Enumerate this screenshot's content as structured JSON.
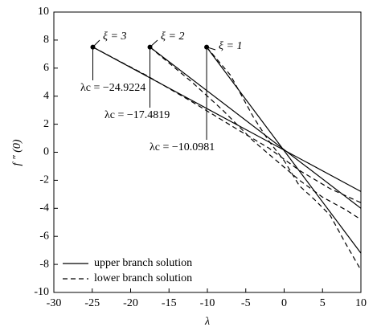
{
  "chart_data": {
    "type": "line",
    "xlabel": "λ",
    "ylabel": "f ″ (0)",
    "xlim": [
      -30,
      10
    ],
    "xticks": [
      -30,
      -25,
      -20,
      -15,
      -10,
      -5,
      0,
      5,
      10
    ],
    "ylim": [
      -10,
      10
    ],
    "yticks": [
      -10,
      -8,
      -6,
      -4,
      -2,
      0,
      2,
      4,
      6,
      8,
      10
    ],
    "series": [
      {
        "style": "solid",
        "color": "#000000",
        "x": [
          -24.9224,
          10
        ],
        "values": [
          7.5,
          -2.8
        ]
      },
      {
        "style": "dashed",
        "color": "#000000",
        "x": [
          -24.9224,
          -18,
          -12,
          -6,
          -2,
          2,
          6,
          10
        ],
        "values": [
          7.5,
          5.5,
          3.6,
          1.6,
          0.3,
          -1.3,
          -2.6,
          -3.6
        ]
      },
      {
        "style": "solid",
        "color": "#000000",
        "x": [
          -17.4819,
          10
        ],
        "values": [
          7.5,
          -4.0
        ]
      },
      {
        "style": "dashed",
        "color": "#000000",
        "x": [
          -17.4819,
          -12,
          -8,
          -4,
          -1,
          2,
          5,
          8,
          10
        ],
        "values": [
          7.5,
          5,
          3,
          0.8,
          -0.6,
          -2,
          -3.2,
          -4.1,
          -4.8
        ]
      },
      {
        "style": "solid",
        "color": "#000000",
        "x": [
          -10.0981,
          10
        ],
        "values": [
          7.5,
          -7.2
        ]
      },
      {
        "style": "dashed",
        "color": "#000000",
        "x": [
          -10.0981,
          -7,
          -4,
          -2,
          0,
          2,
          4,
          6,
          8,
          10
        ],
        "values": [
          7.5,
          5.5,
          2.5,
          0.8,
          -0.6,
          -2.4,
          -3.4,
          -4.5,
          -6.5,
          -8.4
        ]
      }
    ],
    "annotations": [
      "ξ = 3",
      "ξ = 2",
      "ξ = 1",
      "λc = −24.9224",
      "λc = −17.4819",
      "λc = −10.0981"
    ],
    "legend": [
      {
        "label": "upper branch solution",
        "style": "solid"
      },
      {
        "label": "lower branch solution",
        "style": "dashed"
      }
    ]
  }
}
